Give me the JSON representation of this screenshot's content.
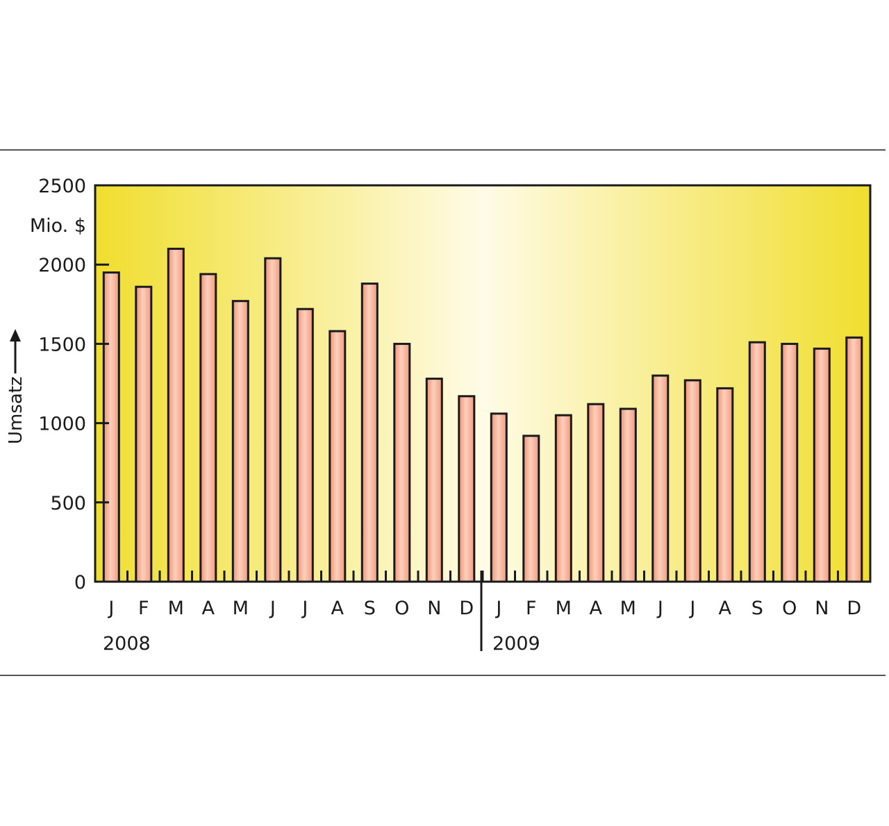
{
  "chart_data": {
    "type": "bar",
    "ylabel": "Umsatz",
    "unit": "Mio. $",
    "ylim": [
      0,
      2500
    ],
    "yticks": [
      0,
      500,
      1000,
      1500,
      2000,
      2500
    ],
    "grid": false,
    "categories": [
      "J",
      "F",
      "M",
      "A",
      "M",
      "J",
      "J",
      "A",
      "S",
      "O",
      "N",
      "D",
      "J",
      "F",
      "M",
      "A",
      "M",
      "J",
      "J",
      "A",
      "S",
      "O",
      "N",
      "D"
    ],
    "years": [
      {
        "label": "2008",
        "months": 12
      },
      {
        "label": "2009",
        "months": 12
      }
    ],
    "series": [
      {
        "values": [
          1950,
          1860,
          2100,
          1940,
          1770,
          2040,
          1720,
          1580,
          1880,
          1500,
          1280,
          1170,
          1060,
          920,
          1050,
          1120,
          1090,
          1300,
          1270,
          1220,
          1510,
          1500,
          1470,
          1540
        ]
      }
    ],
    "colors": {
      "bar": "#f4a084",
      "bar_highlight": "#fbc9b2",
      "bar_outline": "#1a1a1a",
      "background_edge": "#f0de2e",
      "background_center": "#fffbe6",
      "rule": "#555555"
    }
  }
}
